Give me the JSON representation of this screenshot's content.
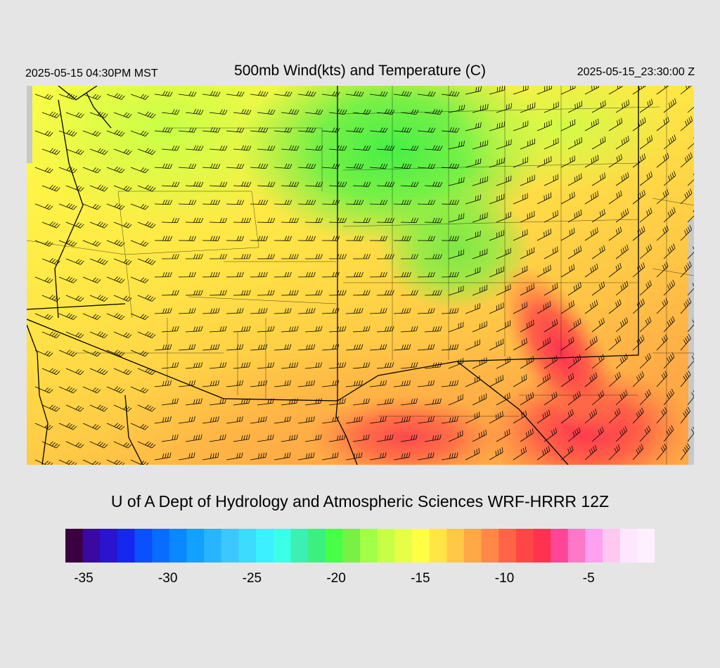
{
  "header": {
    "local_time": "2025-05-15 04:30PM MST",
    "title": "500mb Wind(kts) and Temperature (C)",
    "utc_time": "2025-05-15_23:30:00 Z"
  },
  "footer": {
    "credit": "U of A Dept of Hydrology and Atmospheric Sciences WRF-HRRR 12Z"
  },
  "legend": {
    "unit": "C",
    "min": -36,
    "max": -1,
    "tick_labels": [
      "-35",
      "-30",
      "-25",
      "-20",
      "-15",
      "-10",
      "-5"
    ],
    "tick_values": [
      -35,
      -30,
      -25,
      -20,
      -15,
      -10,
      -5
    ],
    "colors": [
      "#3a0040",
      "#3a0aa0",
      "#2a14d0",
      "#1428f0",
      "#0a50ff",
      "#0a6cff",
      "#0a88ff",
      "#14a0ff",
      "#28b4ff",
      "#3cc8ff",
      "#3cdcff",
      "#3cf0ff",
      "#3cffe8",
      "#3cf0b4",
      "#3cf080",
      "#46ff46",
      "#78f046",
      "#a0ff46",
      "#c8ff46",
      "#e6ff46",
      "#ffff46",
      "#ffe646",
      "#ffc846",
      "#ffa846",
      "#ff8846",
      "#ff6446",
      "#ff4646",
      "#ff3250",
      "#ff4696",
      "#ff78c8",
      "#ffa0f0",
      "#ffc8f0",
      "#ffe6ff",
      "#fff0ff"
    ]
  },
  "map": {
    "field_colors": {
      "cold": "#46f046",
      "cool": "#c8ff46",
      "mild": "#ffff46",
      "warm": "#ffc846",
      "warmer": "#ffa846",
      "hot": "#ff6446",
      "hottest": "#ff3250"
    },
    "barb_color": "#000000"
  }
}
